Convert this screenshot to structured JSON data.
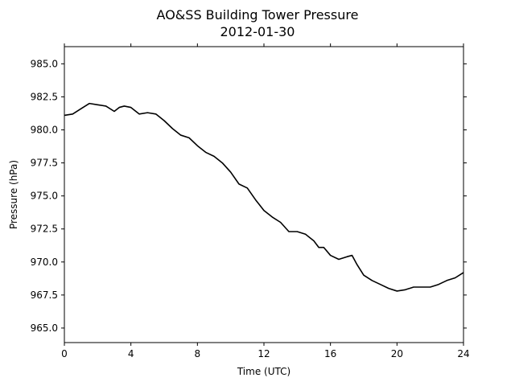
{
  "chart_data": {
    "type": "line",
    "title": "AO&SS Building Tower Pressure",
    "subtitle": "2012-01-30",
    "xlabel": "Time (UTC)",
    "ylabel": "Pressure (hPa)",
    "xlim": [
      0,
      24
    ],
    "ylim": [
      963.9,
      986.3
    ],
    "xticks": [
      0,
      4,
      8,
      12,
      16,
      20,
      24
    ],
    "xtick_labels": [
      "0",
      "4",
      "8",
      "12",
      "16",
      "20",
      "24"
    ],
    "yticks": [
      965.0,
      967.5,
      970.0,
      972.5,
      975.0,
      977.5,
      980.0,
      982.5,
      985.0
    ],
    "ytick_labels": [
      "965.0",
      "967.5",
      "970.0",
      "972.5",
      "975.0",
      "977.5",
      "980.0",
      "982.5",
      "985.0"
    ],
    "grid": false,
    "series": [
      {
        "color": "#000000",
        "x": [
          0,
          0.5,
          1.0,
          1.5,
          2.0,
          2.5,
          3.0,
          3.3,
          3.6,
          4.0,
          4.5,
          5.0,
          5.5,
          6.0,
          6.5,
          7.0,
          7.5,
          8.0,
          8.5,
          9.0,
          9.5,
          10.0,
          10.5,
          11.0,
          11.5,
          12.0,
          12.5,
          13.0,
          13.5,
          14.0,
          14.5,
          15.0,
          15.3,
          15.6,
          16.0,
          16.5,
          17.0,
          17.3,
          17.6,
          18.0,
          18.5,
          19.0,
          19.5,
          20.0,
          20.5,
          21.0,
          21.5,
          22.0,
          22.5,
          23.0,
          23.5,
          24.0
        ],
        "y": [
          981.1,
          981.2,
          981.6,
          982.0,
          981.9,
          981.8,
          981.4,
          981.7,
          981.8,
          981.7,
          981.2,
          981.3,
          981.2,
          980.7,
          980.1,
          979.6,
          979.4,
          978.8,
          978.3,
          978.0,
          977.5,
          976.8,
          975.9,
          975.6,
          974.7,
          973.9,
          973.4,
          973.0,
          972.3,
          972.3,
          972.1,
          971.6,
          971.1,
          971.1,
          970.5,
          970.2,
          970.4,
          970.5,
          969.8,
          969.0,
          968.6,
          968.3,
          968.0,
          967.8,
          967.9,
          968.1,
          968.1,
          968.1,
          968.3,
          968.6,
          968.8,
          969.2
        ]
      }
    ]
  }
}
